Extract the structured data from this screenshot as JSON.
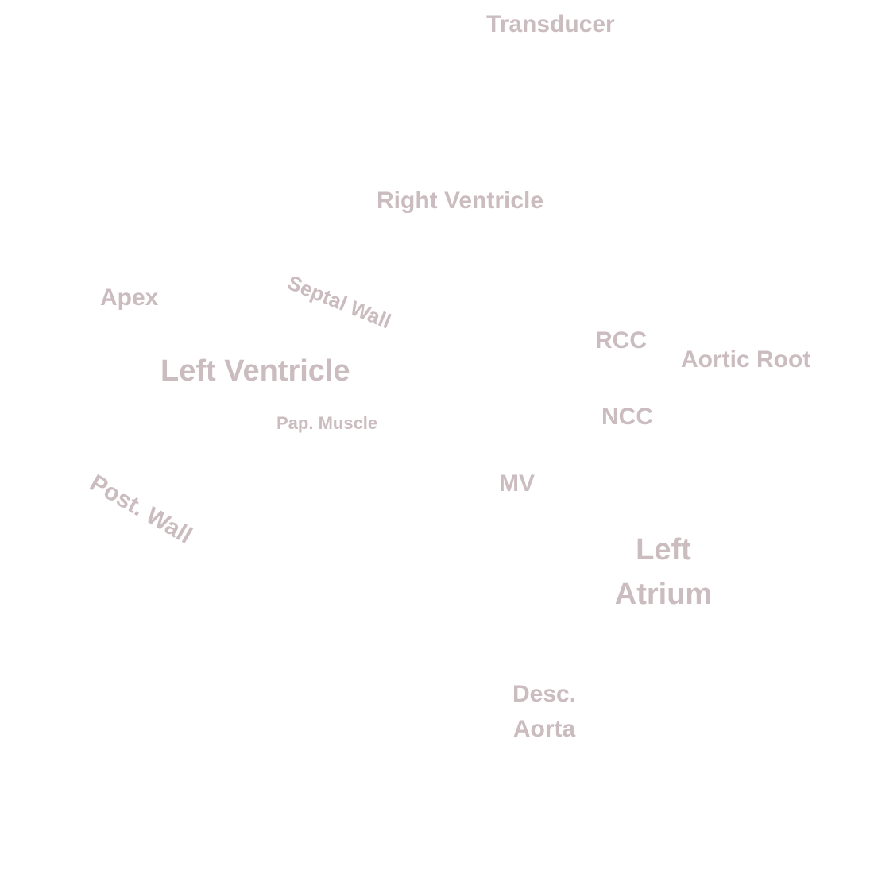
{
  "colors": {
    "label": "#cabcbf",
    "background": "#ffffff"
  },
  "labels": {
    "transducer": "Transducer",
    "right_ventricle": "Right Ventricle",
    "apex": "Apex",
    "septal_wall": "Septal Wall",
    "left_ventricle": "Left Ventricle",
    "rcc": "RCC",
    "aortic_root": "Aortic Root",
    "ncc": "NCC",
    "pap_muscle": "Pap. Muscle",
    "post_wall": "Post. Wall",
    "mv": "MV",
    "left_atrium": [
      "Left",
      "Atrium"
    ],
    "desc_aorta": [
      "Desc.",
      "Aorta"
    ]
  }
}
